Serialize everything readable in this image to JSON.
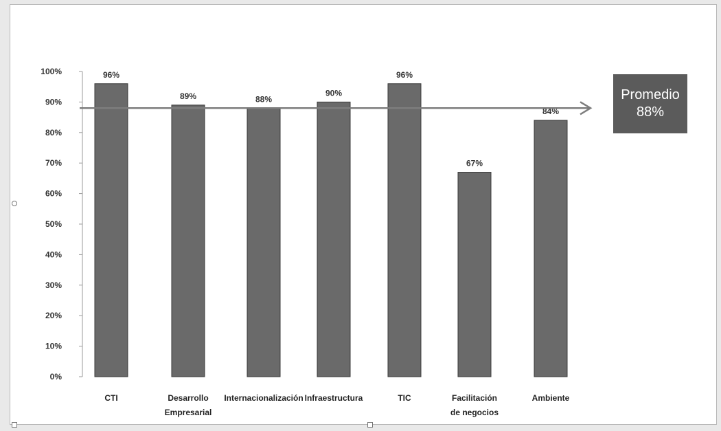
{
  "chart_data": {
    "type": "bar",
    "categories": [
      [
        "CTI"
      ],
      [
        "Desarrollo",
        "Empresarial"
      ],
      [
        "Internacionalización"
      ],
      [
        "Infraestructura"
      ],
      [
        "TIC"
      ],
      [
        "Facilitación",
        "de negocios"
      ],
      [
        "Ambiente"
      ]
    ],
    "values": [
      96,
      89,
      88,
      90,
      96,
      67,
      84
    ],
    "data_labels": [
      "96%",
      "89%",
      "88%",
      "90%",
      "96%",
      "67%",
      "84%"
    ],
    "ylim": [
      0,
      100
    ],
    "yticks": [
      0,
      10,
      20,
      30,
      40,
      50,
      60,
      70,
      80,
      90,
      100
    ],
    "ytick_labels": [
      "0%",
      "10%",
      "20%",
      "30%",
      "40%",
      "50%",
      "60%",
      "70%",
      "80%",
      "90%",
      "100%"
    ],
    "reference_line": {
      "value": 88,
      "arrow": true
    },
    "annotation": {
      "line1": "Promedio",
      "line2": "88%"
    },
    "colors": {
      "bar": "#6a6a6a",
      "bar_edge": "#3a3a3a",
      "line": "#7d7d7d",
      "annotation_bg": "#5b5b5b"
    },
    "grid": false,
    "legend": "none"
  }
}
